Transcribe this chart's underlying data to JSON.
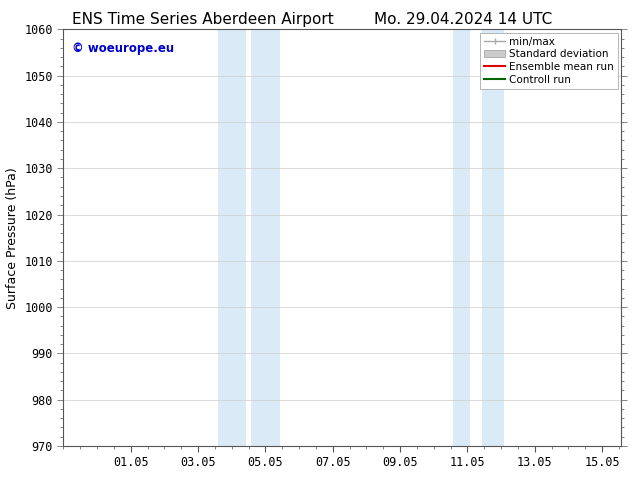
{
  "title_left": "ENS Time Series Aberdeen Airport",
  "title_right": "Mo. 29.04.2024 14 UTC",
  "ylabel": "Surface Pressure (hPa)",
  "ylim": [
    970,
    1060
  ],
  "yticks": [
    970,
    980,
    990,
    1000,
    1010,
    1020,
    1030,
    1040,
    1050,
    1060
  ],
  "xtick_labels": [
    "01.05",
    "03.05",
    "05.05",
    "07.05",
    "09.05",
    "11.05",
    "13.05",
    "15.05"
  ],
  "xtick_positions": [
    2,
    4,
    6,
    8,
    10,
    12,
    14,
    16
  ],
  "xlim": [
    0.0,
    16.57
  ],
  "shaded_bands": [
    {
      "x_start": 4.58,
      "x_end": 5.42,
      "color": "#daeaf6"
    },
    {
      "x_start": 5.58,
      "x_end": 6.42,
      "color": "#daeaf6"
    },
    {
      "x_start": 11.58,
      "x_end": 12.08,
      "color": "#daeaf6"
    },
    {
      "x_start": 12.42,
      "x_end": 13.08,
      "color": "#daeaf6"
    }
  ],
  "legend_items": [
    {
      "label": "min/max",
      "color": "#aaaaaa",
      "type": "errbar"
    },
    {
      "label": "Standard deviation",
      "color": "#cccccc",
      "type": "patch"
    },
    {
      "label": "Ensemble mean run",
      "color": "#dd0000",
      "type": "line"
    },
    {
      "label": "Controll run",
      "color": "#006600",
      "type": "line"
    }
  ],
  "watermark_text": "© woeurope.eu",
  "watermark_color": "#0000cc",
  "bg_color": "#ffffff",
  "plot_bg_color": "#ffffff",
  "grid_color": "#cccccc",
  "title_fontsize": 11,
  "label_fontsize": 9,
  "tick_fontsize": 8.5
}
